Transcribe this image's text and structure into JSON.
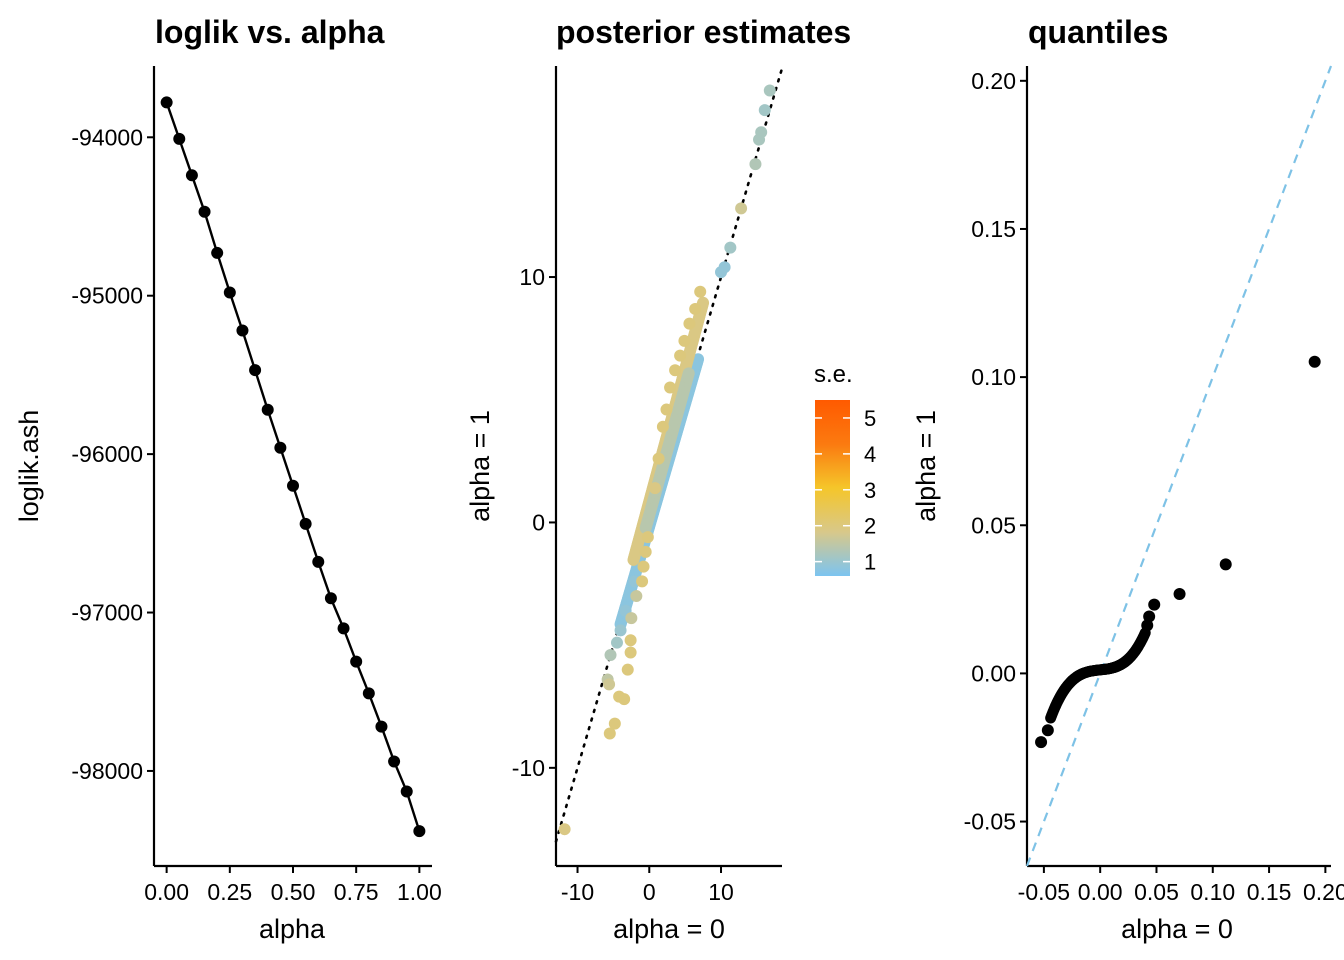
{
  "chart_data": [
    {
      "type": "line",
      "title": "loglik vs. alpha",
      "xlabel": "alpha",
      "ylabel": "loglik.ash",
      "xlim": [
        -0.05,
        1.05
      ],
      "ylim": [
        -98600,
        -93550
      ],
      "xticks": [
        0,
        0.25,
        0.5,
        0.75,
        1
      ],
      "xtick_labels": [
        "0.00",
        "0.25",
        "0.50",
        "0.75",
        "1.00"
      ],
      "yticks": [
        -94000,
        -95000,
        -96000,
        -97000,
        -98000
      ],
      "ytick_labels": [
        "-94000",
        "-95000",
        "-96000",
        "-97000",
        "-98000"
      ],
      "grid": false,
      "series": [
        {
          "x": [
            0,
            0.05,
            0.1,
            0.15,
            0.2,
            0.25,
            0.3,
            0.35,
            0.4,
            0.45,
            0.5,
            0.55,
            0.6,
            0.65,
            0.7,
            0.75,
            0.8,
            0.85,
            0.9,
            0.95,
            1.0
          ],
          "y": [
            -93780,
            -94010,
            -94240,
            -94470,
            -94730,
            -94980,
            -95220,
            -95470,
            -95720,
            -95960,
            -96200,
            -96440,
            -96680,
            -96910,
            -97100,
            -97310,
            -97510,
            -97720,
            -97940,
            -98130,
            -98380
          ],
          "color": "#000000"
        }
      ]
    },
    {
      "type": "scatter",
      "title": "posterior estimates",
      "xlabel": "alpha = 0",
      "ylabel": "alpha = 1",
      "xlim": [
        -13,
        18.5
      ],
      "ylim": [
        -14,
        18.6
      ],
      "xticks": [
        -10,
        0,
        10
      ],
      "xtick_labels": [
        "-10",
        "0",
        "10"
      ],
      "yticks": [
        -10,
        0,
        10
      ],
      "ytick_labels": [
        "-10",
        "0",
        "10"
      ],
      "grid": false,
      "reference_line": {
        "slope": 1,
        "intercept": 0,
        "style": "dotted",
        "color": "#000000"
      },
      "legend": {
        "title": "s.e.",
        "position": "right",
        "range": [
          0.6,
          5.5
        ],
        "ticks": [
          1,
          2,
          3,
          4,
          5
        ],
        "tick_labels": [
          "1",
          "2",
          "3",
          "4",
          "5"
        ],
        "colors": [
          "#7cc4f0",
          "#d8c88a",
          "#f5c62a",
          "#fb7a10",
          "#ff5a00"
        ]
      },
      "points": [
        {
          "x": -11.8,
          "y": -12.5,
          "se": 1.9
        },
        {
          "x": -5.8,
          "y": -6.4,
          "se": 1.5
        },
        {
          "x": -5.6,
          "y": -6.6,
          "se": 1.7
        },
        {
          "x": -5.5,
          "y": -8.6,
          "se": 2.0
        },
        {
          "x": -5.4,
          "y": -5.4,
          "se": 1.3
        },
        {
          "x": -4.8,
          "y": -8.2,
          "se": 2.0
        },
        {
          "x": -4.5,
          "y": -4.9,
          "se": 1.1
        },
        {
          "x": -4.2,
          "y": -7.1,
          "se": 2.0
        },
        {
          "x": -4.0,
          "y": -4.4,
          "se": 1.0
        },
        {
          "x": -3.5,
          "y": -7.2,
          "se": 2.0
        },
        {
          "x": -3.3,
          "y": -3.6,
          "se": 0.9
        },
        {
          "x": -3.0,
          "y": -6.0,
          "se": 2.0
        },
        {
          "x": -2.6,
          "y": -5.3,
          "se": 2.0
        },
        {
          "x": -2.6,
          "y": -4.8,
          "se": 2.0
        },
        {
          "x": -2.5,
          "y": -3.9,
          "se": 1.6
        },
        {
          "x": -2.0,
          "y": -2.4,
          "se": 0.9
        },
        {
          "x": -1.8,
          "y": -3.0,
          "se": 1.6
        },
        {
          "x": -1.0,
          "y": -2.4,
          "se": 2.0
        },
        {
          "x": -0.8,
          "y": -1.8,
          "se": 2.0
        },
        {
          "x": -0.5,
          "y": -1.2,
          "se": 2.0
        },
        {
          "x": -0.2,
          "y": -0.6,
          "se": 2.0
        },
        {
          "x": 0.8,
          "y": 1.4,
          "se": 1.9
        },
        {
          "x": 1.3,
          "y": 2.6,
          "se": 2.0
        },
        {
          "x": 1.9,
          "y": 3.9,
          "se": 2.0
        },
        {
          "x": 2.4,
          "y": 4.6,
          "se": 2.0
        },
        {
          "x": 2.9,
          "y": 5.5,
          "se": 2.0
        },
        {
          "x": 3.6,
          "y": 6.2,
          "se": 2.0
        },
        {
          "x": 4.3,
          "y": 6.8,
          "se": 2.0
        },
        {
          "x": 4.9,
          "y": 7.4,
          "se": 2.0
        },
        {
          "x": 5.6,
          "y": 8.1,
          "se": 2.0
        },
        {
          "x": 6.4,
          "y": 8.7,
          "se": 2.0
        },
        {
          "x": 7.1,
          "y": 9.4,
          "se": 2.0
        },
        {
          "x": 10.0,
          "y": 10.2,
          "se": 0.9
        },
        {
          "x": 10.5,
          "y": 10.4,
          "se": 0.9
        },
        {
          "x": 11.3,
          "y": 11.2,
          "se": 1.1
        },
        {
          "x": 12.8,
          "y": 12.8,
          "se": 1.7
        },
        {
          "x": 14.8,
          "y": 14.6,
          "se": 1.3
        },
        {
          "x": 15.3,
          "y": 15.6,
          "se": 1.2
        },
        {
          "x": 15.6,
          "y": 15.9,
          "se": 1.2
        },
        {
          "x": 16.1,
          "y": 16.8,
          "se": 1.1
        },
        {
          "x": 16.8,
          "y": 17.6,
          "se": 1.2
        }
      ],
      "point_bands": [
        {
          "x_from": -4.0,
          "x_to": 6.8,
          "slope": 1.0,
          "intercept": -0.15,
          "se": 0.8,
          "count": 160
        },
        {
          "x_from": -2.2,
          "x_to": 7.5,
          "slope": 1.08,
          "intercept": 0.85,
          "se": 1.9,
          "count": 140
        },
        {
          "x_from": -0.5,
          "x_to": 5.5,
          "slope": 1.05,
          "intercept": 0.3,
          "se": 1.4,
          "count": 80
        }
      ]
    },
    {
      "type": "scatter",
      "title": "quantiles",
      "xlabel": "alpha = 0",
      "ylabel": "alpha = 1",
      "xlim": [
        -0.065,
        0.205
      ],
      "ylim": [
        -0.065,
        0.205
      ],
      "xticks": [
        -0.05,
        0.0,
        0.05,
        0.1,
        0.15,
        0.2
      ],
      "xtick_labels": [
        "-0.05",
        "0.00",
        "0.05",
        "0.10",
        "0.15",
        "0.20"
      ],
      "yticks": [
        -0.05,
        0.0,
        0.05,
        0.1,
        0.15,
        0.2
      ],
      "ytick_labels": [
        "-0.05",
        "0.00",
        "0.05",
        "0.10",
        "0.15",
        "0.20"
      ],
      "grid": false,
      "reference_line": {
        "slope": 1,
        "intercept": 0,
        "style": "dashed",
        "color": "#7ec2e6"
      },
      "points": [
        {
          "x": -0.0525,
          "y": -0.0232
        },
        {
          "x": -0.0465,
          "y": -0.0192
        },
        {
          "x": 0.0418,
          "y": 0.0162
        },
        {
          "x": 0.0435,
          "y": 0.0192
        },
        {
          "x": 0.048,
          "y": 0.0232
        },
        {
          "x": 0.0705,
          "y": 0.0268
        },
        {
          "x": 0.1115,
          "y": 0.0368
        },
        {
          "x": 0.1905,
          "y": 0.1052
        }
      ],
      "curve": {
        "x_from": -0.044,
        "x_to": 0.04,
        "steps": 120,
        "color": "#000000"
      }
    }
  ]
}
